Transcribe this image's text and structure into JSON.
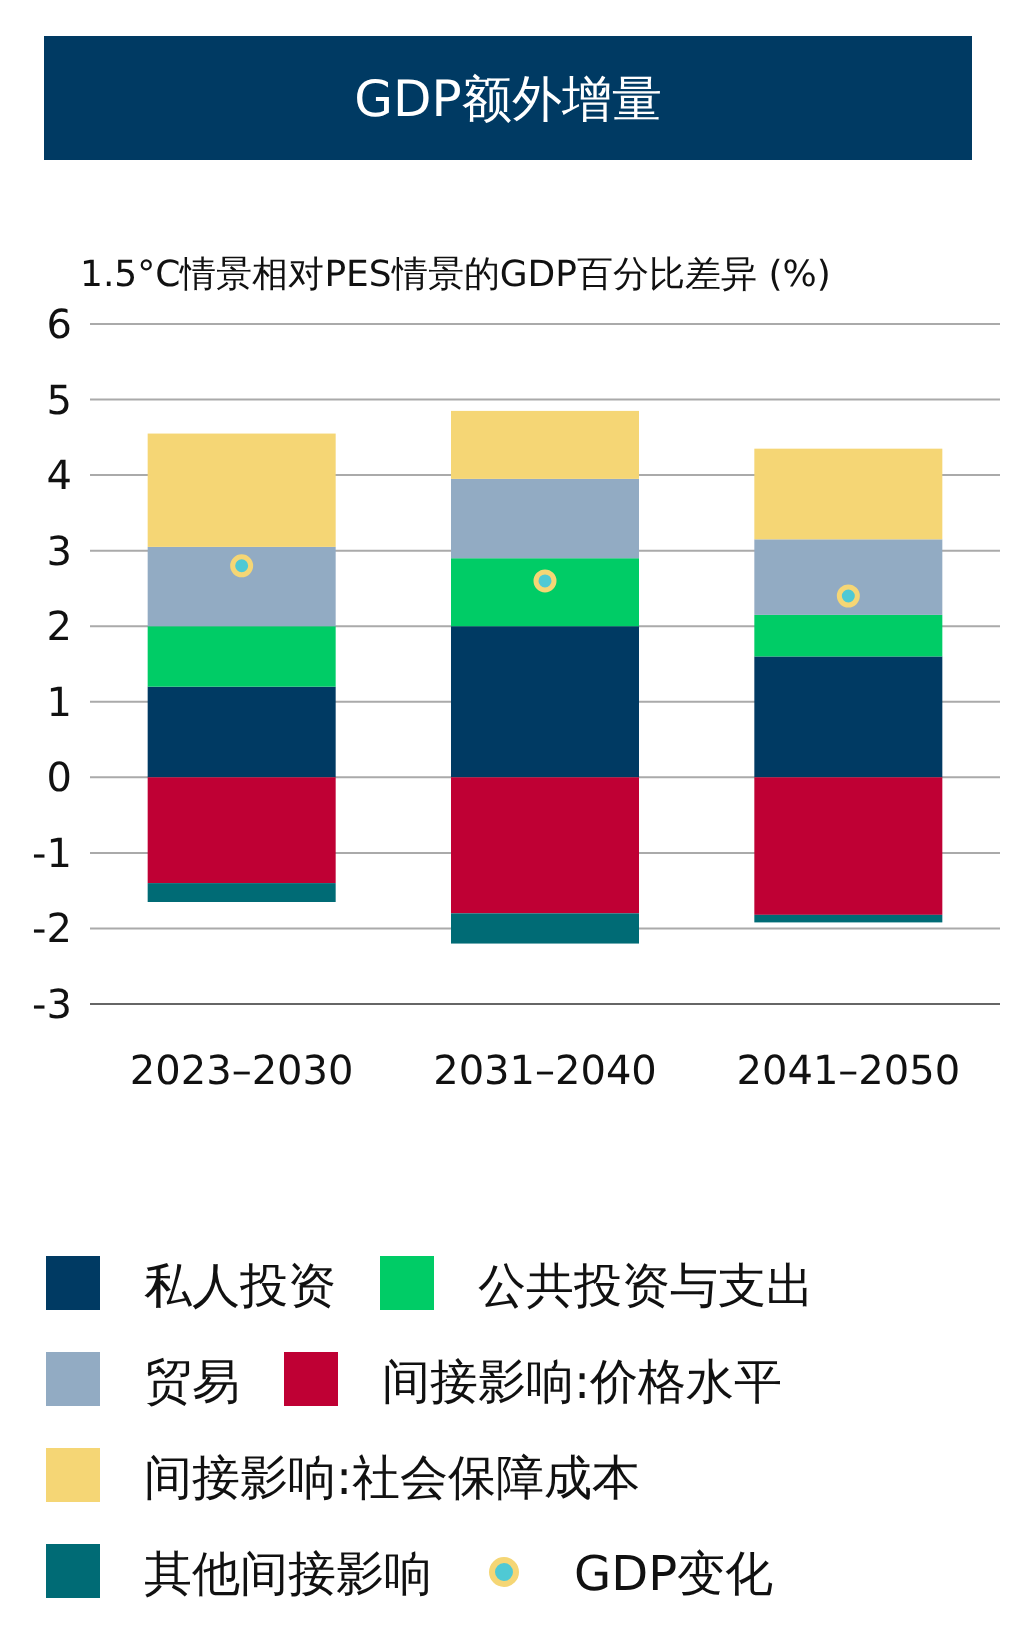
{
  "chart_data": {
    "type": "bar",
    "title": "GDP额外增量",
    "ylabel": "1.5°C情景相对PES情景的GDP百分比差异 (%)",
    "categories": [
      "2023–2030",
      "2031–2040",
      "2041–2050"
    ],
    "stacked": true,
    "grid": "y",
    "legend": "bottom",
    "ylim": [
      -3,
      6
    ],
    "yticks": [
      -3,
      -2,
      -1,
      0,
      1,
      2,
      3,
      4,
      5,
      6
    ],
    "series": [
      {
        "name": "私人投资",
        "color": "#003a63",
        "values": [
          1.2,
          2.0,
          1.6
        ]
      },
      {
        "name": "公共投资与支出",
        "color": "#00cc66",
        "values": [
          0.8,
          0.9,
          0.55
        ]
      },
      {
        "name": "贸易",
        "color": "#92abc3",
        "values": [
          1.05,
          1.05,
          1.0
        ]
      },
      {
        "name": "间接影响:价格水平",
        "color": "#bf0034",
        "values": [
          -1.4,
          -1.8,
          -1.82
        ]
      },
      {
        "name": "间接影响:社会保障成本",
        "color": "#f5d675",
        "values": [
          1.5,
          0.9,
          1.2
        ]
      },
      {
        "name": "其他间接影响",
        "color": "#006b75",
        "values": [
          -0.25,
          -0.4,
          -0.1
        ]
      },
      {
        "name": "GDP变化",
        "type": "scatter",
        "marker": "circle",
        "color": "#4fc9d4",
        "x": [
          "2023–2030",
          "2031–2040",
          "2041–2050"
        ],
        "values": [
          2.8,
          2.6,
          2.4
        ]
      }
    ]
  }
}
